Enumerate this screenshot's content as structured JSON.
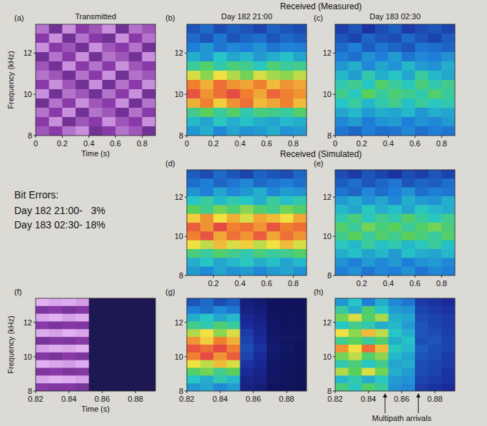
{
  "headers": [
    "Received (Measured)",
    "Received (Simulated)"
  ],
  "bit_errors": {
    "title": "Bit Errors:",
    "lines": [
      "Day 182 21:00-   3%",
      "Day 183 02:30- 18%"
    ]
  },
  "chart_data": [
    {
      "type": "heatmap",
      "panel": "(a)",
      "title": "Transmitted",
      "x_label": "Time (s)",
      "y_label": "Frequency (kHz)",
      "xlim": [
        0,
        0.9
      ],
      "xticks": [
        0,
        0.2,
        0.4,
        0.6,
        0.8
      ],
      "ylim": [
        8,
        13.4
      ],
      "yticks": [
        8,
        10,
        12
      ],
      "color": "#f2c8ff",
      "cells": [
        [
          0.7,
          0.4,
          0.8,
          0.5,
          0.6,
          0.8,
          0.4,
          0.7,
          0.6
        ],
        [
          0.5,
          0.8,
          0.4,
          0.7,
          0.5,
          0.4,
          0.8,
          0.5,
          0.7
        ],
        [
          0.8,
          0.5,
          0.6,
          0.4,
          0.8,
          0.6,
          0.5,
          0.7,
          0.4
        ],
        [
          0.4,
          0.7,
          0.5,
          0.8,
          0.4,
          0.7,
          0.6,
          0.4,
          0.8
        ],
        [
          0.6,
          0.4,
          0.8,
          0.5,
          0.7,
          0.5,
          0.8,
          0.6,
          0.5
        ],
        [
          0.7,
          0.6,
          0.4,
          0.7,
          0.5,
          0.8,
          0.4,
          0.7,
          0.6
        ],
        [
          0.5,
          0.8,
          0.6,
          0.4,
          0.8,
          0.4,
          0.7,
          0.5,
          0.8
        ],
        [
          0.8,
          0.4,
          0.7,
          0.6,
          0.4,
          0.7,
          0.5,
          0.8,
          0.4
        ],
        [
          0.4,
          0.7,
          0.5,
          0.8,
          0.6,
          0.5,
          0.8,
          0.4,
          0.7
        ],
        [
          0.7,
          0.5,
          0.8,
          0.4,
          0.7,
          0.6,
          0.4,
          0.7,
          0.5
        ],
        [
          0.5,
          0.8,
          0.4,
          0.6,
          0.5,
          0.8,
          0.6,
          0.5,
          0.8
        ],
        [
          0.6,
          0.5,
          0.7,
          0.8,
          0.4,
          0.5,
          0.7,
          0.6,
          0.4
        ]
      ]
    },
    {
      "type": "heatmap",
      "panel": "(b)",
      "title": "Day 182 21:00",
      "xlim": [
        0,
        0.9
      ],
      "xticks": [
        0,
        0.2,
        0.4,
        0.6,
        0.8
      ],
      "ylim": [
        8,
        13.4
      ],
      "yticks": [
        8,
        10,
        12
      ],
      "cells": [
        [
          0.3,
          0.35,
          0.28,
          0.32,
          0.3,
          0.26,
          0.33,
          0.3,
          0.28
        ],
        [
          0.35,
          0.3,
          0.38,
          0.3,
          0.34,
          0.36,
          0.3,
          0.35,
          0.32
        ],
        [
          0.4,
          0.45,
          0.38,
          0.42,
          0.4,
          0.44,
          0.38,
          0.41,
          0.4
        ],
        [
          0.5,
          0.45,
          0.55,
          0.48,
          0.52,
          0.46,
          0.5,
          0.54,
          0.48
        ],
        [
          0.6,
          0.66,
          0.58,
          0.64,
          0.62,
          0.56,
          0.65,
          0.6,
          0.62
        ],
        [
          0.78,
          0.72,
          0.8,
          0.75,
          0.7,
          0.78,
          0.74,
          0.72,
          0.76
        ],
        [
          0.9,
          0.85,
          0.92,
          0.88,
          0.86,
          0.9,
          0.84,
          0.88,
          0.86
        ],
        [
          0.95,
          0.88,
          0.92,
          0.96,
          0.9,
          0.86,
          0.93,
          0.9,
          0.88
        ],
        [
          0.85,
          0.9,
          0.82,
          0.88,
          0.92,
          0.84,
          0.86,
          0.9,
          0.84
        ],
        [
          0.62,
          0.68,
          0.6,
          0.66,
          0.58,
          0.64,
          0.62,
          0.6,
          0.66
        ],
        [
          0.52,
          0.48,
          0.56,
          0.5,
          0.54,
          0.5,
          0.48,
          0.52,
          0.5
        ],
        [
          0.45,
          0.5,
          0.42,
          0.48,
          0.44,
          0.46,
          0.5,
          0.44,
          0.46
        ]
      ]
    },
    {
      "type": "heatmap",
      "panel": "(c)",
      "title": "Day 183 02:30",
      "xlim": [
        0,
        0.9
      ],
      "xticks": [
        0,
        0.2,
        0.4,
        0.6,
        0.8
      ],
      "ylim": [
        8,
        13.4
      ],
      "yticks": [
        8,
        10,
        12
      ],
      "cells": [
        [
          0.25,
          0.3,
          0.22,
          0.28,
          0.32,
          0.24,
          0.28,
          0.3,
          0.26
        ],
        [
          0.3,
          0.26,
          0.34,
          0.3,
          0.28,
          0.35,
          0.3,
          0.26,
          0.32
        ],
        [
          0.35,
          0.4,
          0.32,
          0.38,
          0.34,
          0.3,
          0.38,
          0.36,
          0.34
        ],
        [
          0.4,
          0.36,
          0.44,
          0.4,
          0.46,
          0.38,
          0.42,
          0.4,
          0.44
        ],
        [
          0.45,
          0.5,
          0.42,
          0.48,
          0.44,
          0.52,
          0.46,
          0.44,
          0.5
        ],
        [
          0.52,
          0.46,
          0.58,
          0.5,
          0.55,
          0.48,
          0.6,
          0.52,
          0.48
        ],
        [
          0.58,
          0.62,
          0.55,
          0.66,
          0.6,
          0.56,
          0.64,
          0.58,
          0.62
        ],
        [
          0.62,
          0.56,
          0.68,
          0.6,
          0.65,
          0.62,
          0.58,
          0.66,
          0.6
        ],
        [
          0.55,
          0.6,
          0.52,
          0.58,
          0.62,
          0.54,
          0.6,
          0.56,
          0.58
        ],
        [
          0.48,
          0.52,
          0.46,
          0.5,
          0.48,
          0.52,
          0.45,
          0.5,
          0.48
        ],
        [
          0.42,
          0.46,
          0.4,
          0.44,
          0.46,
          0.4,
          0.44,
          0.42,
          0.46
        ],
        [
          0.38,
          0.34,
          0.4,
          0.36,
          0.38,
          0.42,
          0.36,
          0.4,
          0.38
        ]
      ]
    },
    {
      "type": "heatmap",
      "panel": "(d)",
      "xlim": [
        0,
        0.9
      ],
      "xticks": [
        0.2,
        0.4,
        0.6,
        0.8
      ],
      "ylim": [
        8,
        13.4
      ],
      "yticks": [
        8,
        10,
        12
      ],
      "cells": [
        [
          0.32,
          0.28,
          0.35,
          0.3,
          0.26,
          0.33,
          0.3,
          0.28,
          0.34
        ],
        [
          0.36,
          0.4,
          0.34,
          0.38,
          0.42,
          0.35,
          0.38,
          0.4,
          0.36
        ],
        [
          0.44,
          0.4,
          0.48,
          0.42,
          0.45,
          0.5,
          0.42,
          0.46,
          0.44
        ],
        [
          0.55,
          0.6,
          0.52,
          0.58,
          0.55,
          0.5,
          0.6,
          0.54,
          0.58
        ],
        [
          0.68,
          0.62,
          0.7,
          0.65,
          0.72,
          0.66,
          0.62,
          0.7,
          0.66
        ],
        [
          0.82,
          0.88,
          0.8,
          0.85,
          0.78,
          0.86,
          0.84,
          0.8,
          0.86
        ],
        [
          0.94,
          0.88,
          0.96,
          0.9,
          0.92,
          0.88,
          0.95,
          0.9,
          0.92
        ],
        [
          0.9,
          0.95,
          0.86,
          0.92,
          0.88,
          0.94,
          0.86,
          0.92,
          0.88
        ],
        [
          0.8,
          0.76,
          0.84,
          0.78,
          0.82,
          0.76,
          0.8,
          0.84,
          0.78
        ],
        [
          0.64,
          0.6,
          0.66,
          0.62,
          0.58,
          0.64,
          0.6,
          0.62,
          0.66
        ],
        [
          0.5,
          0.55,
          0.48,
          0.52,
          0.56,
          0.5,
          0.54,
          0.48,
          0.52
        ],
        [
          0.46,
          0.42,
          0.48,
          0.44,
          0.46,
          0.42,
          0.46,
          0.48,
          0.44
        ]
      ]
    },
    {
      "type": "heatmap",
      "panel": "(e)",
      "xlim": [
        0,
        0.9
      ],
      "xticks": [
        0.2,
        0.4,
        0.6,
        0.8
      ],
      "ylim": [
        8,
        13.4
      ],
      "yticks": [
        8,
        10,
        12
      ],
      "cells": [
        [
          0.28,
          0.24,
          0.3,
          0.26,
          0.22,
          0.28,
          0.25,
          0.3,
          0.26
        ],
        [
          0.32,
          0.36,
          0.3,
          0.34,
          0.38,
          0.3,
          0.34,
          0.32,
          0.36
        ],
        [
          0.38,
          0.34,
          0.42,
          0.36,
          0.4,
          0.44,
          0.36,
          0.4,
          0.38
        ],
        [
          0.46,
          0.5,
          0.44,
          0.48,
          0.42,
          0.5,
          0.46,
          0.44,
          0.5
        ],
        [
          0.52,
          0.48,
          0.56,
          0.5,
          0.54,
          0.48,
          0.56,
          0.52,
          0.5
        ],
        [
          0.58,
          0.64,
          0.56,
          0.62,
          0.58,
          0.66,
          0.6,
          0.56,
          0.62
        ],
        [
          0.66,
          0.6,
          0.7,
          0.64,
          0.68,
          0.6,
          0.66,
          0.7,
          0.64
        ],
        [
          0.62,
          0.68,
          0.6,
          0.66,
          0.62,
          0.68,
          0.64,
          0.6,
          0.66
        ],
        [
          0.56,
          0.52,
          0.6,
          0.54,
          0.58,
          0.52,
          0.56,
          0.6,
          0.54
        ],
        [
          0.5,
          0.54,
          0.48,
          0.52,
          0.46,
          0.54,
          0.5,
          0.48,
          0.52
        ],
        [
          0.44,
          0.4,
          0.46,
          0.42,
          0.46,
          0.4,
          0.44,
          0.46,
          0.42
        ],
        [
          0.4,
          0.44,
          0.38,
          0.42,
          0.4,
          0.44,
          0.38,
          0.42,
          0.4
        ]
      ]
    },
    {
      "type": "heatmap",
      "panel": "(f)",
      "x_label": "Time (s)",
      "y_label": "Frequency (kHz)",
      "xlim": [
        0.82,
        0.892
      ],
      "xticks": [
        0.82,
        0.84,
        0.86,
        0.88
      ],
      "ylim": [
        8,
        13.4
      ],
      "yticks": [
        8,
        10,
        12
      ],
      "color": "#f2c8ff",
      "cells": [
        [
          0.92,
          0.88,
          0.9,
          0.85,
          0.04,
          0.04,
          0.04,
          0.04,
          0.04
        ],
        [
          0.45,
          0.5,
          0.42,
          0.48,
          0.04,
          0.04,
          0.04,
          0.04,
          0.04
        ],
        [
          0.88,
          0.92,
          0.86,
          0.9,
          0.04,
          0.04,
          0.04,
          0.04,
          0.04
        ],
        [
          0.5,
          0.44,
          0.48,
          0.46,
          0.04,
          0.04,
          0.04,
          0.04,
          0.04
        ],
        [
          0.9,
          0.86,
          0.92,
          0.88,
          0.04,
          0.04,
          0.04,
          0.04,
          0.04
        ],
        [
          0.42,
          0.48,
          0.45,
          0.5,
          0.04,
          0.04,
          0.04,
          0.04,
          0.04
        ],
        [
          0.86,
          0.9,
          0.88,
          0.92,
          0.04,
          0.04,
          0.04,
          0.04,
          0.04
        ],
        [
          0.48,
          0.42,
          0.5,
          0.44,
          0.04,
          0.04,
          0.04,
          0.04,
          0.04
        ],
        [
          0.92,
          0.88,
          0.85,
          0.9,
          0.04,
          0.04,
          0.04,
          0.04,
          0.04
        ],
        [
          0.46,
          0.5,
          0.44,
          0.48,
          0.04,
          0.04,
          0.04,
          0.04,
          0.04
        ],
        [
          0.88,
          0.92,
          0.9,
          0.86,
          0.04,
          0.04,
          0.04,
          0.04,
          0.04
        ],
        [
          0.5,
          0.46,
          0.48,
          0.42,
          0.04,
          0.04,
          0.04,
          0.04,
          0.04
        ]
      ]
    },
    {
      "type": "heatmap",
      "panel": "(g)",
      "xlim": [
        0.82,
        0.892
      ],
      "xticks": [
        0.82,
        0.84,
        0.86,
        0.88
      ],
      "ylim": [
        8,
        13.4
      ],
      "yticks": [
        8,
        10,
        12
      ],
      "cells": [
        [
          0.3,
          0.35,
          0.28,
          0.32,
          0.12,
          0.1,
          0.06,
          0.05,
          0.06
        ],
        [
          0.4,
          0.36,
          0.42,
          0.38,
          0.14,
          0.12,
          0.06,
          0.06,
          0.05
        ],
        [
          0.5,
          0.55,
          0.48,
          0.52,
          0.18,
          0.14,
          0.07,
          0.06,
          0.06
        ],
        [
          0.62,
          0.58,
          0.65,
          0.6,
          0.2,
          0.16,
          0.08,
          0.06,
          0.06
        ],
        [
          0.75,
          0.8,
          0.72,
          0.78,
          0.24,
          0.18,
          0.08,
          0.07,
          0.06
        ],
        [
          0.88,
          0.82,
          0.9,
          0.85,
          0.26,
          0.2,
          0.09,
          0.07,
          0.06
        ],
        [
          0.95,
          0.92,
          0.96,
          0.9,
          0.28,
          0.22,
          0.1,
          0.08,
          0.06
        ],
        [
          0.9,
          0.96,
          0.88,
          0.94,
          0.26,
          0.2,
          0.09,
          0.07,
          0.06
        ],
        [
          0.8,
          0.76,
          0.84,
          0.78,
          0.22,
          0.18,
          0.08,
          0.07,
          0.06
        ],
        [
          0.66,
          0.7,
          0.62,
          0.68,
          0.2,
          0.16,
          0.08,
          0.06,
          0.05
        ],
        [
          0.55,
          0.5,
          0.58,
          0.52,
          0.16,
          0.14,
          0.07,
          0.06,
          0.05
        ],
        [
          0.45,
          0.48,
          0.42,
          0.46,
          0.14,
          0.12,
          0.06,
          0.05,
          0.05
        ]
      ]
    },
    {
      "type": "heatmap",
      "panel": "(h)",
      "xlim": [
        0.82,
        0.892
      ],
      "xticks": [
        0.82,
        0.84,
        0.86,
        0.88
      ],
      "ylim": [
        8,
        13.4
      ],
      "yticks": [
        8,
        10,
        12
      ],
      "annotation": {
        "text": "Multipath arrivals",
        "x": [
          0.85,
          0.87
        ]
      },
      "cells": [
        [
          0.45,
          0.55,
          0.4,
          0.5,
          0.42,
          0.38,
          0.24,
          0.22,
          0.2
        ],
        [
          0.6,
          0.5,
          0.65,
          0.55,
          0.46,
          0.44,
          0.26,
          0.24,
          0.22
        ],
        [
          0.7,
          0.78,
          0.66,
          0.74,
          0.5,
          0.48,
          0.28,
          0.26,
          0.24
        ],
        [
          0.55,
          0.62,
          0.58,
          0.5,
          0.52,
          0.46,
          0.3,
          0.26,
          0.24
        ],
        [
          0.8,
          0.72,
          0.84,
          0.76,
          0.55,
          0.5,
          0.3,
          0.28,
          0.25
        ],
        [
          0.62,
          0.68,
          0.6,
          0.66,
          0.5,
          0.54,
          0.28,
          0.3,
          0.26
        ],
        [
          0.88,
          0.8,
          0.92,
          0.84,
          0.56,
          0.52,
          0.32,
          0.28,
          0.26
        ],
        [
          0.7,
          0.76,
          0.66,
          0.72,
          0.52,
          0.48,
          0.3,
          0.28,
          0.24
        ],
        [
          0.58,
          0.64,
          0.55,
          0.62,
          0.48,
          0.5,
          0.28,
          0.26,
          0.24
        ],
        [
          0.75,
          0.68,
          0.78,
          0.7,
          0.5,
          0.46,
          0.28,
          0.26,
          0.22
        ],
        [
          0.52,
          0.58,
          0.5,
          0.56,
          0.46,
          0.44,
          0.26,
          0.24,
          0.22
        ],
        [
          0.64,
          0.56,
          0.66,
          0.6,
          0.44,
          0.42,
          0.24,
          0.22,
          0.2
        ]
      ]
    }
  ]
}
